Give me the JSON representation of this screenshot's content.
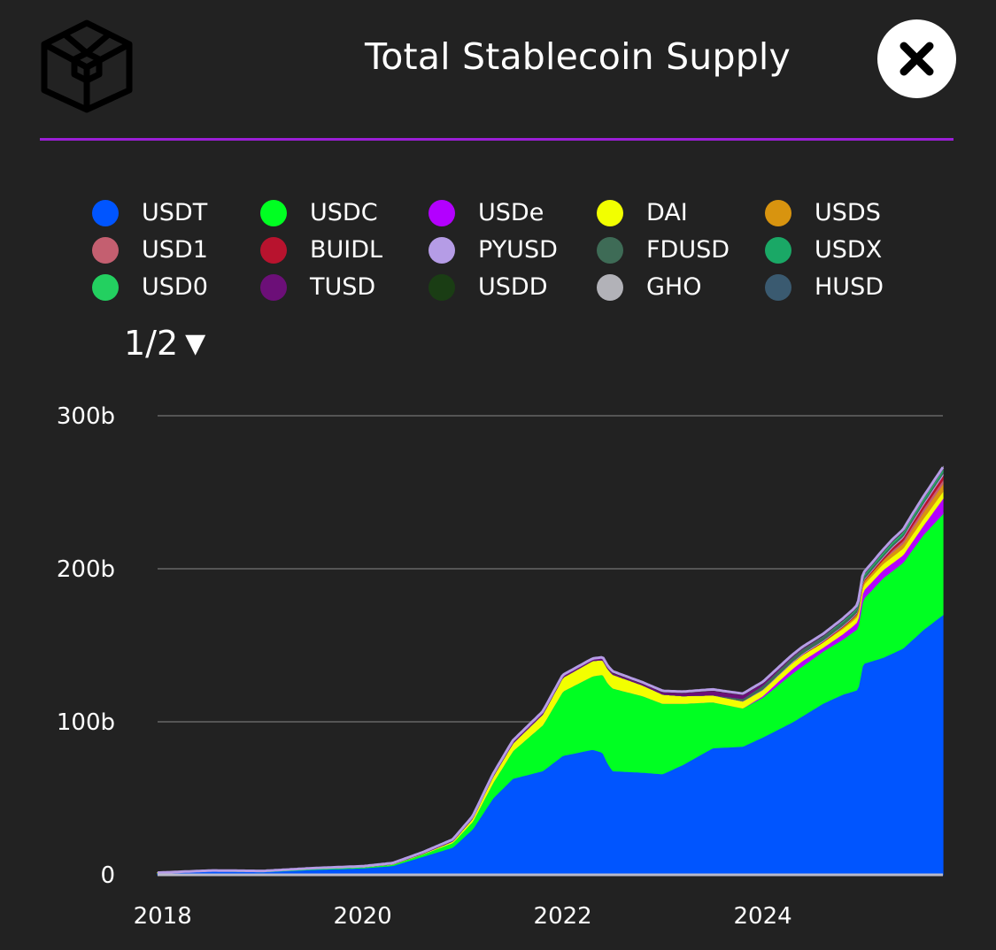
{
  "header": {
    "title": "Total Stablecoin Supply",
    "close_icon": "close-icon",
    "logo_icon": "cube-logo-icon"
  },
  "colors": {
    "accent": "#9b1fd6",
    "background": "#222222"
  },
  "legend": {
    "items": [
      {
        "label": "USDT",
        "color": "#0055ff"
      },
      {
        "label": "USDC",
        "color": "#00ff22"
      },
      {
        "label": "USDe",
        "color": "#b300ff"
      },
      {
        "label": "DAI",
        "color": "#f2ff00"
      },
      {
        "label": "USDS",
        "color": "#d8940f"
      },
      {
        "label": "USD1",
        "color": "#c45f70"
      },
      {
        "label": "BUIDL",
        "color": "#b8132e"
      },
      {
        "label": "PYUSD",
        "color": "#b59ce6"
      },
      {
        "label": "FDUSD",
        "color": "#3e6b56"
      },
      {
        "label": "USDX",
        "color": "#1aa866"
      },
      {
        "label": "USD0",
        "color": "#23d060"
      },
      {
        "label": "TUSD",
        "color": "#6c0f78"
      },
      {
        "label": "USDD",
        "color": "#1a3d14"
      },
      {
        "label": "GHO",
        "color": "#b2b2b8"
      },
      {
        "label": "HUSD",
        "color": "#3a5a70"
      }
    ],
    "page": "1/2",
    "page_icon": "triangle-down-icon"
  },
  "chart_data": {
    "type": "area",
    "stacked": true,
    "x_ticks": [
      "2018",
      "2020",
      "2022",
      "2024"
    ],
    "y_ticks": [
      "0",
      "100b",
      "200b",
      "300b"
    ],
    "ylim": [
      0,
      300
    ],
    "xlim": [
      2017.95,
      2025.8
    ],
    "grid": true,
    "series": [
      {
        "name": "USDT",
        "color": "#0055ff",
        "points": [
          [
            2017.95,
            1.3
          ],
          [
            2018.5,
            2.5
          ],
          [
            2019.0,
            2.0
          ],
          [
            2019.5,
            3.5
          ],
          [
            2020.0,
            4.5
          ],
          [
            2020.3,
            6
          ],
          [
            2020.6,
            12
          ],
          [
            2020.9,
            18
          ],
          [
            2021.1,
            30
          ],
          [
            2021.3,
            50
          ],
          [
            2021.5,
            63
          ],
          [
            2021.8,
            68
          ],
          [
            2022.0,
            78
          ],
          [
            2022.3,
            82
          ],
          [
            2022.4,
            80
          ],
          [
            2022.45,
            73
          ],
          [
            2022.5,
            68
          ],
          [
            2022.8,
            67
          ],
          [
            2023.0,
            66
          ],
          [
            2023.2,
            72
          ],
          [
            2023.5,
            83
          ],
          [
            2023.8,
            84
          ],
          [
            2024.0,
            90
          ],
          [
            2024.3,
            100
          ],
          [
            2024.6,
            112
          ],
          [
            2024.8,
            118
          ],
          [
            2024.95,
            121
          ],
          [
            2025.0,
            138
          ],
          [
            2025.2,
            142
          ],
          [
            2025.4,
            148
          ],
          [
            2025.6,
            160
          ],
          [
            2025.8,
            170
          ]
        ]
      },
      {
        "name": "USDC",
        "color": "#00ff22",
        "points": [
          [
            2017.95,
            0.05
          ],
          [
            2018.5,
            0.2
          ],
          [
            2019.0,
            0.3
          ],
          [
            2019.5,
            0.5
          ],
          [
            2020.0,
            0.6
          ],
          [
            2020.3,
            0.8
          ],
          [
            2020.6,
            1.5
          ],
          [
            2020.9,
            3
          ],
          [
            2021.1,
            5
          ],
          [
            2021.3,
            10
          ],
          [
            2021.5,
            18
          ],
          [
            2021.8,
            30
          ],
          [
            2022.0,
            42
          ],
          [
            2022.3,
            48
          ],
          [
            2022.5,
            54
          ],
          [
            2022.8,
            50
          ],
          [
            2023.0,
            46
          ],
          [
            2023.2,
            40
          ],
          [
            2023.5,
            30
          ],
          [
            2023.8,
            25
          ],
          [
            2024.0,
            26
          ],
          [
            2024.3,
            32
          ],
          [
            2024.6,
            34
          ],
          [
            2024.8,
            36
          ],
          [
            2024.95,
            40
          ],
          [
            2025.0,
            42
          ],
          [
            2025.2,
            52
          ],
          [
            2025.4,
            56
          ],
          [
            2025.6,
            62
          ],
          [
            2025.8,
            66
          ]
        ]
      },
      {
        "name": "USDe",
        "color": "#b300ff",
        "points": [
          [
            2017.95,
            0
          ],
          [
            2023.8,
            0
          ],
          [
            2024.0,
            1
          ],
          [
            2024.2,
            2.5
          ],
          [
            2024.4,
            3.5
          ],
          [
            2024.6,
            2.5
          ],
          [
            2024.9,
            4
          ],
          [
            2025.0,
            5.5
          ],
          [
            2025.4,
            5
          ],
          [
            2025.6,
            6
          ],
          [
            2025.8,
            10
          ]
        ]
      },
      {
        "name": "DAI",
        "color": "#f2ff00",
        "points": [
          [
            2017.95,
            0.02
          ],
          [
            2019.5,
            0.1
          ],
          [
            2020.0,
            0.12
          ],
          [
            2020.6,
            0.4
          ],
          [
            2020.9,
            1
          ],
          [
            2021.1,
            2
          ],
          [
            2021.3,
            4
          ],
          [
            2021.5,
            5
          ],
          [
            2021.8,
            7
          ],
          [
            2022.0,
            9
          ],
          [
            2022.3,
            10
          ],
          [
            2022.5,
            9
          ],
          [
            2022.8,
            7
          ],
          [
            2023.0,
            6
          ],
          [
            2023.2,
            5
          ],
          [
            2023.5,
            4.5
          ],
          [
            2023.8,
            4.5
          ],
          [
            2024.0,
            4
          ],
          [
            2024.3,
            4
          ],
          [
            2024.6,
            3.5
          ],
          [
            2024.9,
            3.5
          ],
          [
            2025.2,
            4
          ],
          [
            2025.5,
            4.5
          ],
          [
            2025.8,
            4.5
          ]
        ]
      },
      {
        "name": "USDS",
        "color": "#d8940f",
        "points": [
          [
            2017.95,
            0
          ],
          [
            2024.6,
            0
          ],
          [
            2024.8,
            1
          ],
          [
            2025.0,
            2
          ],
          [
            2025.4,
            3
          ],
          [
            2025.8,
            5
          ]
        ]
      },
      {
        "name": "USD1",
        "color": "#c45f70",
        "points": [
          [
            2017.95,
            0
          ],
          [
            2025.2,
            0
          ],
          [
            2025.3,
            1.5
          ],
          [
            2025.5,
            2.2
          ],
          [
            2025.8,
            2.6
          ]
        ]
      },
      {
        "name": "BUIDL",
        "color": "#b8132e",
        "points": [
          [
            2017.95,
            0
          ],
          [
            2024.2,
            0
          ],
          [
            2024.5,
            0.5
          ],
          [
            2024.8,
            0.6
          ],
          [
            2025.0,
            0.8
          ],
          [
            2025.3,
            1.8
          ],
          [
            2025.6,
            2.5
          ],
          [
            2025.8,
            2.8
          ]
        ]
      },
      {
        "name": "PYUSD",
        "color": "#b59ce6",
        "points": [
          [
            2017.95,
            0
          ],
          [
            2023.6,
            0
          ],
          [
            2024.0,
            0.3
          ],
          [
            2024.5,
            0.6
          ],
          [
            2024.9,
            0.5
          ],
          [
            2025.3,
            0.8
          ],
          [
            2025.8,
            1.2
          ]
        ]
      },
      {
        "name": "FDUSD",
        "color": "#3e6b56",
        "points": [
          [
            2017.95,
            0
          ],
          [
            2023.5,
            0
          ],
          [
            2023.8,
            1.5
          ],
          [
            2024.0,
            2.5
          ],
          [
            2024.3,
            3
          ],
          [
            2024.6,
            2.5
          ],
          [
            2024.9,
            2
          ],
          [
            2025.2,
            1.5
          ],
          [
            2025.8,
            1.3
          ]
        ]
      },
      {
        "name": "USDX",
        "color": "#1aa866",
        "points": [
          [
            2017.95,
            0
          ],
          [
            2024.5,
            0
          ],
          [
            2024.9,
            0.5
          ],
          [
            2025.4,
            0.8
          ],
          [
            2025.8,
            0.9
          ]
        ]
      },
      {
        "name": "USD0",
        "color": "#23d060",
        "points": [
          [
            2017.95,
            0
          ],
          [
            2024.5,
            0
          ],
          [
            2024.8,
            0.4
          ],
          [
            2025.2,
            0.7
          ],
          [
            2025.8,
            0.6
          ]
        ]
      },
      {
        "name": "TUSD",
        "color": "#6c0f78",
        "points": [
          [
            2017.95,
            0.02
          ],
          [
            2019.0,
            0.15
          ],
          [
            2020.0,
            0.3
          ],
          [
            2020.9,
            0.8
          ],
          [
            2021.3,
            1.2
          ],
          [
            2021.8,
            1.4
          ],
          [
            2022.3,
            1.2
          ],
          [
            2022.8,
            1
          ],
          [
            2023.2,
            2
          ],
          [
            2023.5,
            3
          ],
          [
            2023.8,
            2.5
          ],
          [
            2024.0,
            1.5
          ],
          [
            2024.3,
            0.6
          ],
          [
            2024.8,
            0.5
          ],
          [
            2025.8,
            0.5
          ]
        ]
      },
      {
        "name": "USDD",
        "color": "#1a3d14",
        "points": [
          [
            2017.95,
            0
          ],
          [
            2022.3,
            0
          ],
          [
            2022.5,
            0.7
          ],
          [
            2023.0,
            0.7
          ],
          [
            2024.0,
            0.7
          ],
          [
            2025.0,
            0.7
          ],
          [
            2025.8,
            0.6
          ]
        ]
      },
      {
        "name": "GHO",
        "color": "#b2b2b8",
        "points": [
          [
            2017.95,
            0
          ],
          [
            2023.5,
            0
          ],
          [
            2024.0,
            0.1
          ],
          [
            2024.6,
            0.2
          ],
          [
            2025.2,
            0.3
          ],
          [
            2025.8,
            0.3
          ]
        ]
      },
      {
        "name": "HUSD",
        "color": "#3a5a70",
        "points": [
          [
            2017.95,
            0
          ],
          [
            2019.2,
            0
          ],
          [
            2020.0,
            0.1
          ],
          [
            2021.0,
            0.3
          ],
          [
            2021.5,
            0.4
          ],
          [
            2022.0,
            0.3
          ],
          [
            2022.6,
            0.1
          ],
          [
            2023.0,
            0
          ],
          [
            2025.8,
            0
          ]
        ]
      }
    ]
  }
}
